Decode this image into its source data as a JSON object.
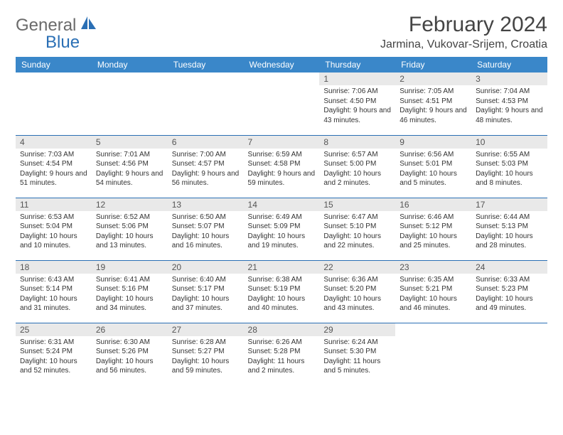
{
  "brand": {
    "part1": "General",
    "part2": "Blue"
  },
  "title": "February 2024",
  "location": "Jarmina, Vukovar-Srijem, Croatia",
  "colors": {
    "header_bg": "#3a87c9",
    "rule": "#2a6fb5",
    "daynum_bg": "#e9e9e9",
    "brand_gray": "#6a6a6a",
    "brand_blue": "#2a6fb5"
  },
  "weekdays": [
    "Sunday",
    "Monday",
    "Tuesday",
    "Wednesday",
    "Thursday",
    "Friday",
    "Saturday"
  ],
  "weeks": [
    [
      {
        "n": "",
        "sr": "",
        "ss": "",
        "dl": ""
      },
      {
        "n": "",
        "sr": "",
        "ss": "",
        "dl": ""
      },
      {
        "n": "",
        "sr": "",
        "ss": "",
        "dl": ""
      },
      {
        "n": "",
        "sr": "",
        "ss": "",
        "dl": ""
      },
      {
        "n": "1",
        "sr": "Sunrise: 7:06 AM",
        "ss": "Sunset: 4:50 PM",
        "dl": "Daylight: 9 hours and 43 minutes."
      },
      {
        "n": "2",
        "sr": "Sunrise: 7:05 AM",
        "ss": "Sunset: 4:51 PM",
        "dl": "Daylight: 9 hours and 46 minutes."
      },
      {
        "n": "3",
        "sr": "Sunrise: 7:04 AM",
        "ss": "Sunset: 4:53 PM",
        "dl": "Daylight: 9 hours and 48 minutes."
      }
    ],
    [
      {
        "n": "4",
        "sr": "Sunrise: 7:03 AM",
        "ss": "Sunset: 4:54 PM",
        "dl": "Daylight: 9 hours and 51 minutes."
      },
      {
        "n": "5",
        "sr": "Sunrise: 7:01 AM",
        "ss": "Sunset: 4:56 PM",
        "dl": "Daylight: 9 hours and 54 minutes."
      },
      {
        "n": "6",
        "sr": "Sunrise: 7:00 AM",
        "ss": "Sunset: 4:57 PM",
        "dl": "Daylight: 9 hours and 56 minutes."
      },
      {
        "n": "7",
        "sr": "Sunrise: 6:59 AM",
        "ss": "Sunset: 4:58 PM",
        "dl": "Daylight: 9 hours and 59 minutes."
      },
      {
        "n": "8",
        "sr": "Sunrise: 6:57 AM",
        "ss": "Sunset: 5:00 PM",
        "dl": "Daylight: 10 hours and 2 minutes."
      },
      {
        "n": "9",
        "sr": "Sunrise: 6:56 AM",
        "ss": "Sunset: 5:01 PM",
        "dl": "Daylight: 10 hours and 5 minutes."
      },
      {
        "n": "10",
        "sr": "Sunrise: 6:55 AM",
        "ss": "Sunset: 5:03 PM",
        "dl": "Daylight: 10 hours and 8 minutes."
      }
    ],
    [
      {
        "n": "11",
        "sr": "Sunrise: 6:53 AM",
        "ss": "Sunset: 5:04 PM",
        "dl": "Daylight: 10 hours and 10 minutes."
      },
      {
        "n": "12",
        "sr": "Sunrise: 6:52 AM",
        "ss": "Sunset: 5:06 PM",
        "dl": "Daylight: 10 hours and 13 minutes."
      },
      {
        "n": "13",
        "sr": "Sunrise: 6:50 AM",
        "ss": "Sunset: 5:07 PM",
        "dl": "Daylight: 10 hours and 16 minutes."
      },
      {
        "n": "14",
        "sr": "Sunrise: 6:49 AM",
        "ss": "Sunset: 5:09 PM",
        "dl": "Daylight: 10 hours and 19 minutes."
      },
      {
        "n": "15",
        "sr": "Sunrise: 6:47 AM",
        "ss": "Sunset: 5:10 PM",
        "dl": "Daylight: 10 hours and 22 minutes."
      },
      {
        "n": "16",
        "sr": "Sunrise: 6:46 AM",
        "ss": "Sunset: 5:12 PM",
        "dl": "Daylight: 10 hours and 25 minutes."
      },
      {
        "n": "17",
        "sr": "Sunrise: 6:44 AM",
        "ss": "Sunset: 5:13 PM",
        "dl": "Daylight: 10 hours and 28 minutes."
      }
    ],
    [
      {
        "n": "18",
        "sr": "Sunrise: 6:43 AM",
        "ss": "Sunset: 5:14 PM",
        "dl": "Daylight: 10 hours and 31 minutes."
      },
      {
        "n": "19",
        "sr": "Sunrise: 6:41 AM",
        "ss": "Sunset: 5:16 PM",
        "dl": "Daylight: 10 hours and 34 minutes."
      },
      {
        "n": "20",
        "sr": "Sunrise: 6:40 AM",
        "ss": "Sunset: 5:17 PM",
        "dl": "Daylight: 10 hours and 37 minutes."
      },
      {
        "n": "21",
        "sr": "Sunrise: 6:38 AM",
        "ss": "Sunset: 5:19 PM",
        "dl": "Daylight: 10 hours and 40 minutes."
      },
      {
        "n": "22",
        "sr": "Sunrise: 6:36 AM",
        "ss": "Sunset: 5:20 PM",
        "dl": "Daylight: 10 hours and 43 minutes."
      },
      {
        "n": "23",
        "sr": "Sunrise: 6:35 AM",
        "ss": "Sunset: 5:21 PM",
        "dl": "Daylight: 10 hours and 46 minutes."
      },
      {
        "n": "24",
        "sr": "Sunrise: 6:33 AM",
        "ss": "Sunset: 5:23 PM",
        "dl": "Daylight: 10 hours and 49 minutes."
      }
    ],
    [
      {
        "n": "25",
        "sr": "Sunrise: 6:31 AM",
        "ss": "Sunset: 5:24 PM",
        "dl": "Daylight: 10 hours and 52 minutes."
      },
      {
        "n": "26",
        "sr": "Sunrise: 6:30 AM",
        "ss": "Sunset: 5:26 PM",
        "dl": "Daylight: 10 hours and 56 minutes."
      },
      {
        "n": "27",
        "sr": "Sunrise: 6:28 AM",
        "ss": "Sunset: 5:27 PM",
        "dl": "Daylight: 10 hours and 59 minutes."
      },
      {
        "n": "28",
        "sr": "Sunrise: 6:26 AM",
        "ss": "Sunset: 5:28 PM",
        "dl": "Daylight: 11 hours and 2 minutes."
      },
      {
        "n": "29",
        "sr": "Sunrise: 6:24 AM",
        "ss": "Sunset: 5:30 PM",
        "dl": "Daylight: 11 hours and 5 minutes."
      },
      {
        "n": "",
        "sr": "",
        "ss": "",
        "dl": ""
      },
      {
        "n": "",
        "sr": "",
        "ss": "",
        "dl": ""
      }
    ]
  ]
}
